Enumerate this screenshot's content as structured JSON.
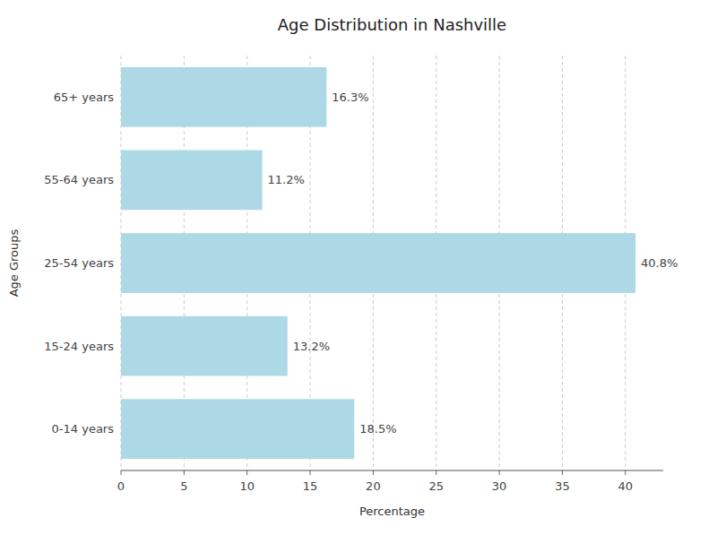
{
  "chart_data": {
    "type": "bar",
    "orientation": "horizontal",
    "title": "Age Distribution in Nashville",
    "xlabel": "Percentage",
    "ylabel": "Age Groups",
    "categories": [
      "0-14 years",
      "15-24 years",
      "25-54 years",
      "55-64 years",
      "65+ years"
    ],
    "values": [
      18.5,
      13.2,
      40.8,
      11.2,
      16.3
    ],
    "value_labels": [
      "18.5%",
      "13.2%",
      "40.8%",
      "11.2%",
      "16.3%"
    ],
    "data_labels": true,
    "color": "#ADD8E6",
    "xlim": [
      0,
      43
    ],
    "xticks": [
      0,
      5,
      10,
      15,
      20,
      25,
      30,
      35,
      40
    ],
    "grid": true
  }
}
